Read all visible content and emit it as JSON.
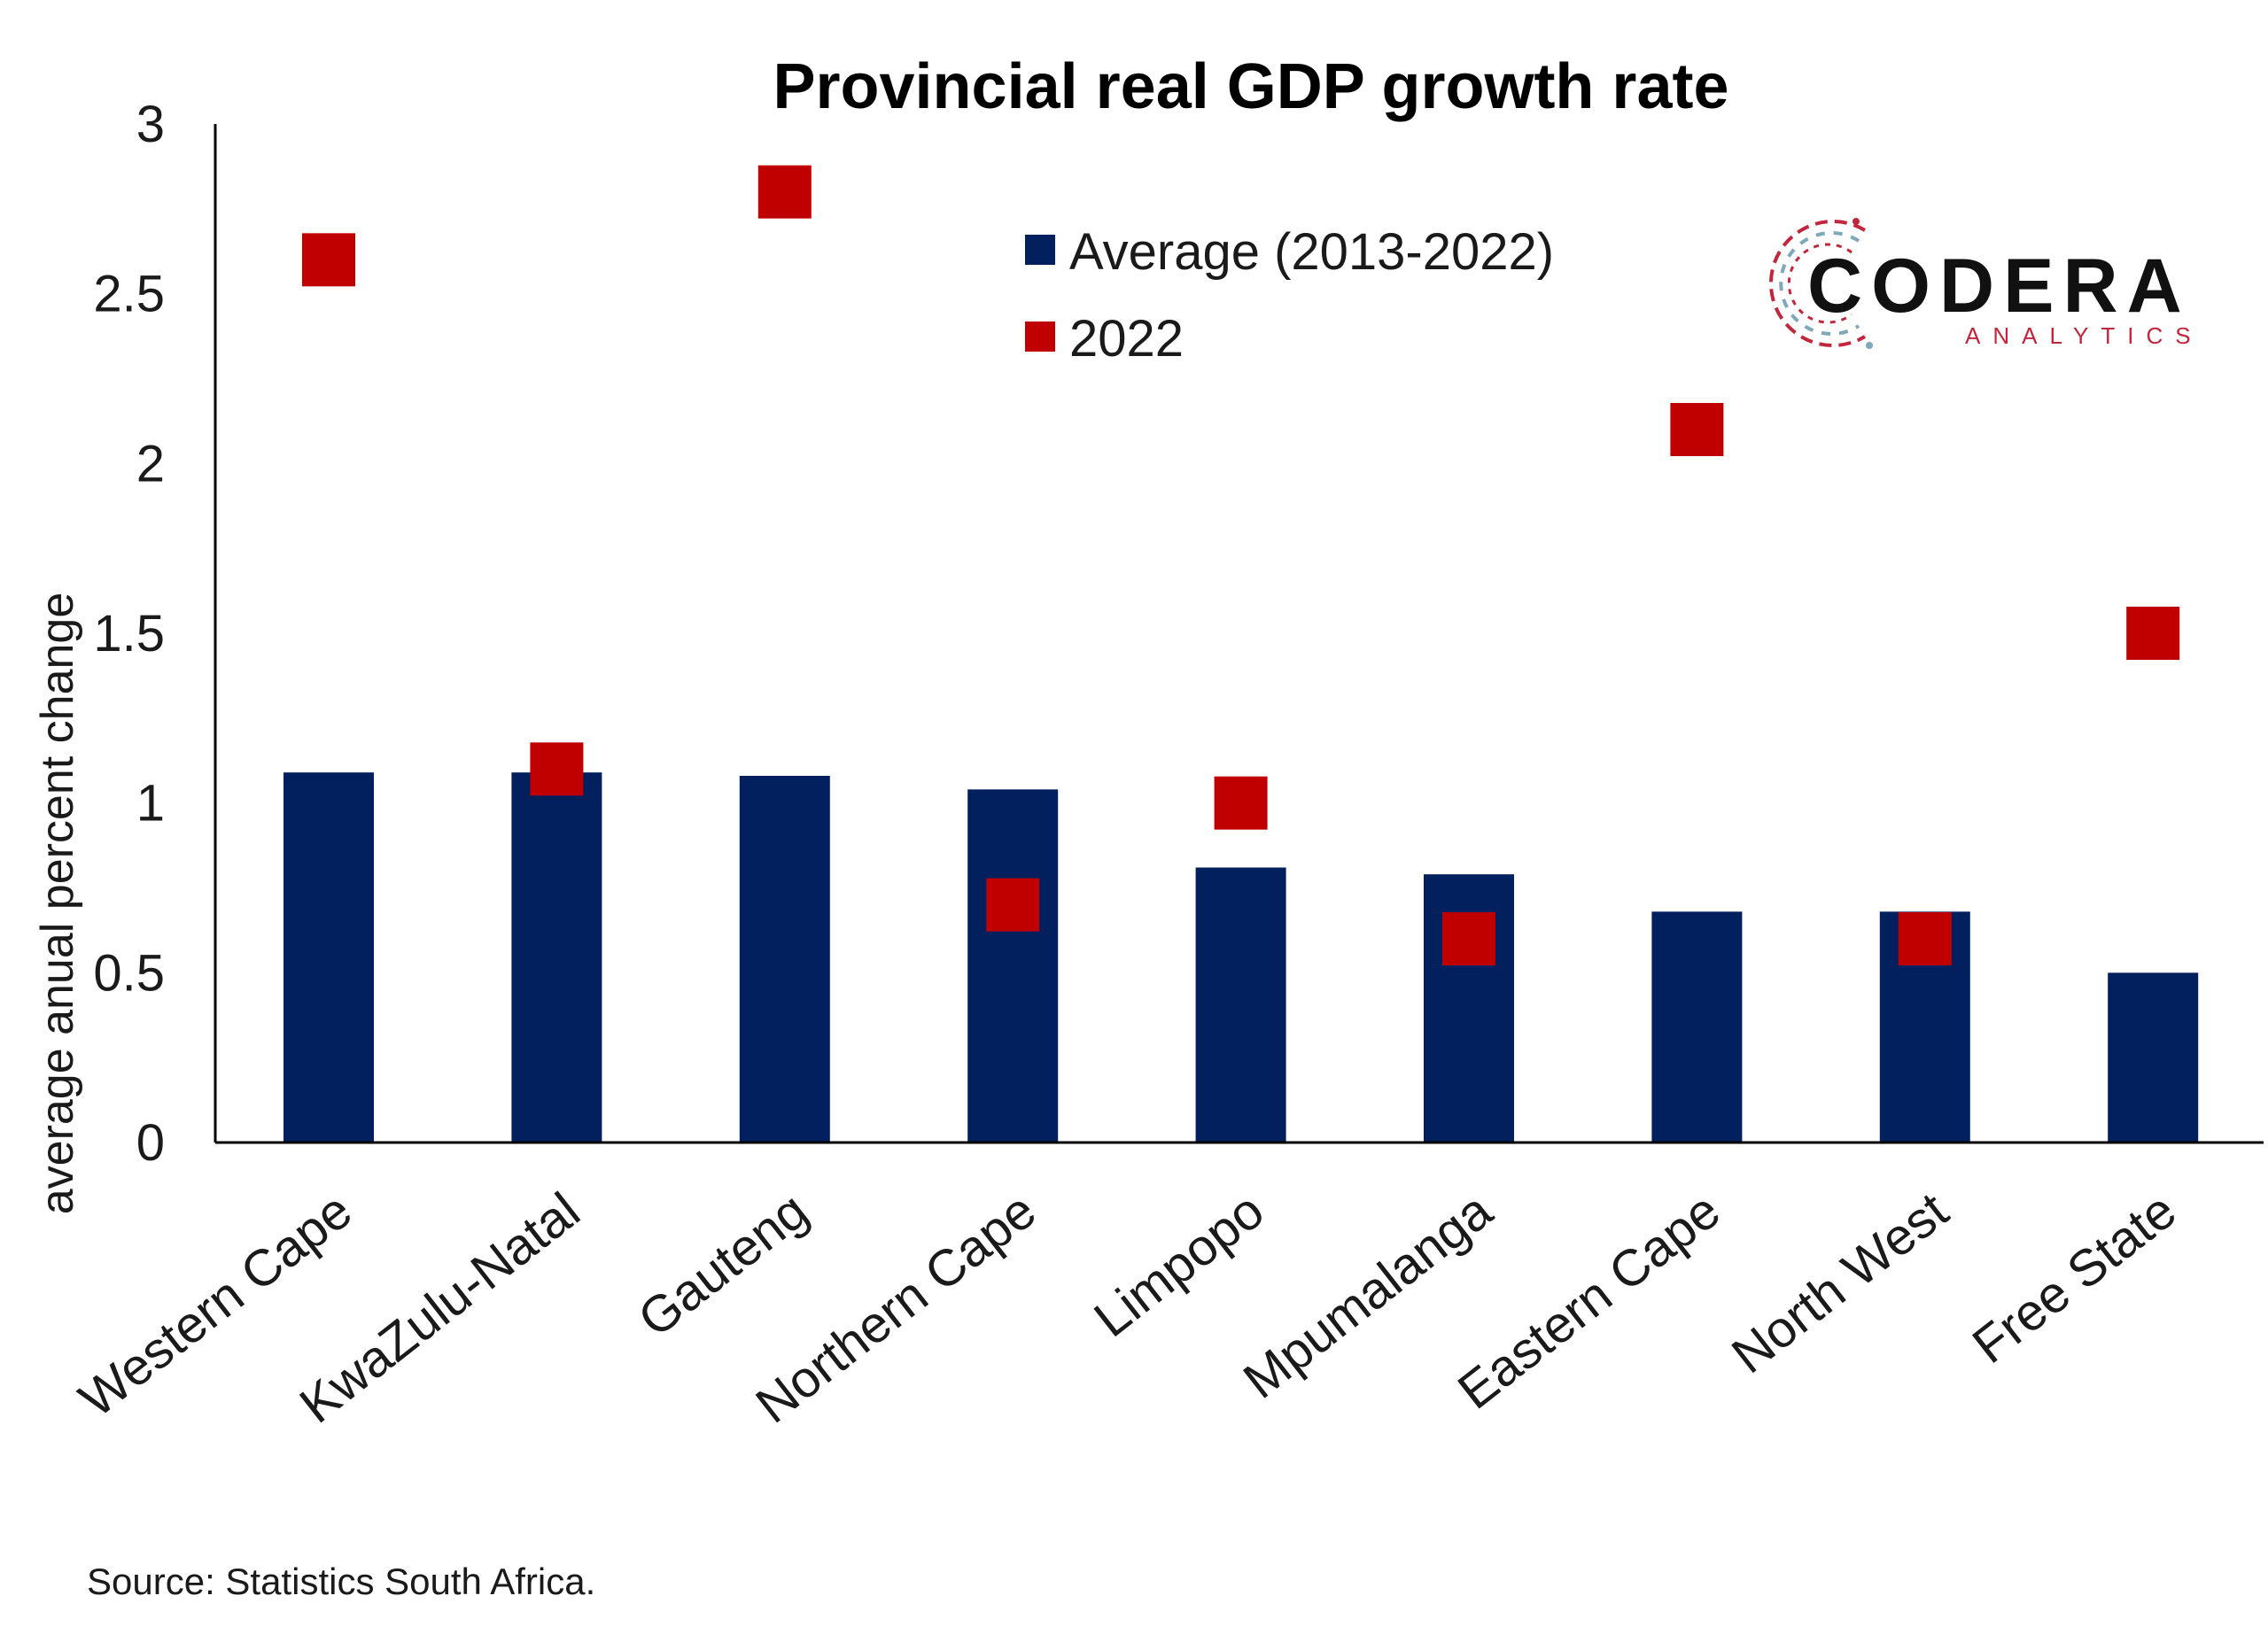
{
  "chart_data": {
    "type": "bar",
    "title": "Provincial real GDP growth rate",
    "ylabel": "average anual percent change",
    "xlabel": "",
    "ylim": [
      0,
      3
    ],
    "yticks": [
      "0",
      "0.5",
      "1",
      "1.5",
      "2",
      "2.5",
      "3"
    ],
    "categories": [
      "Western Cape",
      "KwaZulu-Natal",
      "Gauteng",
      "Northern Cape",
      "Limpopo",
      "Mpumalanga",
      "Eastern Cape",
      "North West",
      "Free State"
    ],
    "series": [
      {
        "name": "Average (2013-2022)",
        "kind": "bar",
        "color": "#03205e",
        "values": [
          1.09,
          1.09,
          1.08,
          1.04,
          0.81,
          0.79,
          0.68,
          0.68,
          0.5
        ]
      },
      {
        "name": "2022",
        "kind": "marker",
        "color": "#c00000",
        "values": [
          2.6,
          1.1,
          2.8,
          0.7,
          1.0,
          0.6,
          2.1,
          0.6,
          1.5
        ]
      }
    ],
    "legend_position": "top-center",
    "grid": false
  },
  "source": "Source: Statistics South Africa.",
  "logo": {
    "name": "CODERA",
    "subtitle": "ANALYTICS",
    "accent_color": "#c0263c",
    "secondary_color": "#7fa9b8"
  }
}
